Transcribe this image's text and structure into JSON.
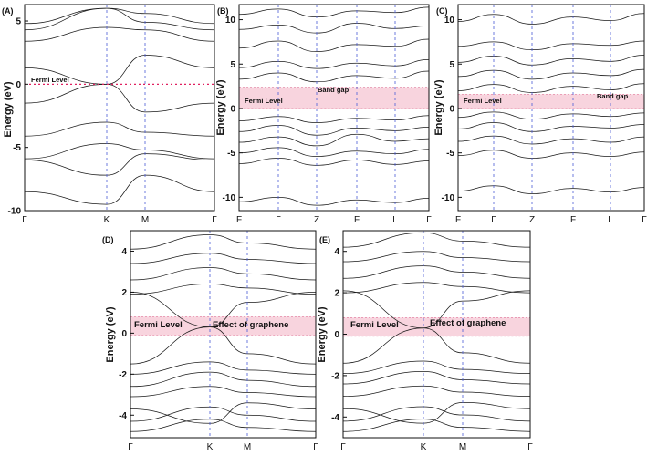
{
  "chart_data": [
    {
      "panel": "(A)",
      "type": "line",
      "ylabel": "Energy (eV)",
      "ylim": [
        -10,
        6.3
      ],
      "yticks": [
        5,
        0,
        -5,
        -10
      ],
      "kpoints": [
        "Γ",
        "K",
        "M",
        "Γ"
      ],
      "fermi": 0,
      "annotations": [
        "Fermi Level"
      ],
      "bands": [
        [
          -8.5,
          -9.5,
          -7.2,
          -8.5
        ],
        [
          -6.0,
          -7.2,
          -5.5,
          -6.0
        ],
        [
          -5.9,
          -4.7,
          -5.2,
          -5.9
        ],
        [
          -4.1,
          -3.0,
          -3.8,
          -4.1
        ],
        [
          -1.5,
          0.0,
          -2.2,
          -1.5
        ],
        [
          1.3,
          0.0,
          2.3,
          1.3
        ],
        [
          3.4,
          4.5,
          4.3,
          3.4
        ],
        [
          4.3,
          6.0,
          4.9,
          4.3
        ],
        [
          4.8,
          6.0,
          5.6,
          4.8
        ]
      ]
    },
    {
      "panel": "(B)",
      "type": "line",
      "ylabel": "Energy (eV)",
      "ylim": [
        -11.5,
        11.7
      ],
      "yticks": [
        10,
        5,
        0,
        -5,
        -10
      ],
      "kpoints": [
        "F",
        "Γ",
        "Z",
        "F",
        "L",
        "Γ"
      ],
      "fermi": 0,
      "gap": [
        0.0,
        2.4
      ],
      "annotations": [
        "Band gap",
        "Fermi Level"
      ],
      "bands": [
        [
          -10.5,
          -10.0,
          -10.9,
          -10.3,
          -10.6,
          -10.1
        ],
        [
          -6.2,
          -5.6,
          -6.4,
          -5.8,
          -6.3,
          -5.9
        ],
        [
          -5.0,
          -4.4,
          -5.4,
          -4.8,
          -5.1,
          -4.6
        ],
        [
          -3.8,
          -3.2,
          -4.2,
          -2.9,
          -3.7,
          -3.4
        ],
        [
          -2.6,
          -1.9,
          -3.0,
          -2.2,
          -2.5,
          -2.1
        ],
        [
          -1.4,
          -0.9,
          -1.6,
          -1.1,
          -1.3,
          -0.8
        ],
        [
          3.3,
          4.0,
          3.0,
          3.7,
          3.4,
          4.2
        ],
        [
          4.6,
          5.3,
          4.5,
          5.1,
          4.8,
          5.5
        ],
        [
          6.8,
          7.6,
          6.4,
          7.2,
          7.0,
          7.8
        ],
        [
          8.9,
          9.4,
          8.5,
          9.6,
          9.0,
          9.3
        ],
        [
          10.6,
          11.2,
          10.3,
          11.0,
          10.8,
          11.4
        ]
      ]
    },
    {
      "panel": "(C)",
      "type": "line",
      "ylabel": "Energy (eV)",
      "ylim": [
        -11.5,
        11.7
      ],
      "yticks": [
        10,
        5,
        0,
        -5,
        -10
      ],
      "kpoints": [
        "F",
        "Γ",
        "Z",
        "F",
        "L",
        "Γ"
      ],
      "fermi": 0,
      "gap": [
        0.0,
        1.6
      ],
      "annotations": [
        "Band gap",
        "Fermi Level"
      ],
      "bands": [
        [
          -9.3,
          -8.7,
          -9.6,
          -9.0,
          -9.4,
          -8.9
        ],
        [
          -5.3,
          -4.7,
          -5.6,
          -5.0,
          -5.4,
          -4.9
        ],
        [
          -3.7,
          -3.1,
          -4.0,
          -3.4,
          -3.8,
          -3.2
        ],
        [
          -2.3,
          -1.6,
          -2.6,
          -2.0,
          -2.2,
          -1.8
        ],
        [
          -1.0,
          -0.4,
          -1.2,
          -0.6,
          -0.9,
          -0.5
        ],
        [
          2.0,
          2.7,
          1.8,
          2.5,
          2.1,
          2.8
        ],
        [
          3.6,
          4.3,
          3.3,
          4.0,
          3.7,
          4.4
        ],
        [
          5.2,
          5.9,
          4.9,
          5.6,
          5.3,
          6.0
        ],
        [
          7.0,
          7.5,
          6.6,
          7.3,
          7.1,
          7.6
        ],
        [
          9.8,
          10.6,
          9.5,
          10.3,
          9.9,
          10.7
        ]
      ]
    },
    {
      "panel": "(D)",
      "type": "line",
      "ylabel": "Energy (eV)",
      "ylim": [
        -5.1,
        5.0
      ],
      "yticks": [
        4,
        2,
        0,
        -2,
        -4
      ],
      "kpoints": [
        "Γ",
        "K",
        "M",
        "Γ"
      ],
      "fermi": 0,
      "gap": [
        -0.1,
        0.8
      ],
      "annotations": [
        "Fermi Level",
        "Effect of graphene"
      ],
      "bands": [
        [
          -4.8,
          -4.2,
          -4.6,
          -4.8
        ],
        [
          -4.3,
          -3.6,
          -4.0,
          -4.3
        ],
        [
          -3.7,
          -4.4,
          -3.4,
          -3.7
        ],
        [
          -3.1,
          -2.6,
          -2.9,
          -3.1
        ],
        [
          -2.6,
          -1.9,
          -2.3,
          -2.6
        ],
        [
          -2.0,
          -1.4,
          -1.8,
          -2.0
        ],
        [
          -1.5,
          0.3,
          -1.0,
          -1.5
        ],
        [
          2.0,
          0.3,
          1.5,
          2.0
        ],
        [
          1.9,
          2.4,
          2.2,
          1.9
        ],
        [
          2.6,
          3.2,
          2.9,
          2.6
        ],
        [
          3.4,
          3.9,
          3.6,
          3.4
        ],
        [
          4.1,
          4.8,
          4.4,
          4.1
        ]
      ]
    },
    {
      "panel": "(E)",
      "type": "line",
      "ylabel": "Energy (eV)",
      "ylim": [
        -5.0,
        5.0
      ],
      "yticks": [
        4,
        2,
        0,
        -2,
        -4
      ],
      "kpoints": [
        "Γ",
        "K",
        "M",
        "Γ"
      ],
      "fermi": 0,
      "gap": [
        -0.1,
        0.8
      ],
      "annotations": [
        "Fermi Level",
        "Effect of graphene"
      ],
      "bands": [
        [
          -4.7,
          -4.1,
          -4.5,
          -4.7
        ],
        [
          -4.2,
          -3.5,
          -3.9,
          -4.2
        ],
        [
          -3.6,
          -4.3,
          -3.3,
          -3.6
        ],
        [
          -3.0,
          -2.5,
          -2.8,
          -3.0
        ],
        [
          -2.4,
          -1.8,
          -2.2,
          -2.4
        ],
        [
          -1.9,
          -1.3,
          -1.7,
          -1.9
        ],
        [
          -1.4,
          0.3,
          -0.9,
          -1.4
        ],
        [
          2.1,
          0.3,
          1.6,
          2.1
        ],
        [
          2.0,
          2.5,
          2.3,
          2.0
        ],
        [
          2.7,
          3.3,
          3.0,
          2.7
        ],
        [
          3.5,
          4.0,
          3.7,
          3.5
        ],
        [
          4.2,
          4.9,
          4.5,
          4.2
        ]
      ]
    }
  ]
}
